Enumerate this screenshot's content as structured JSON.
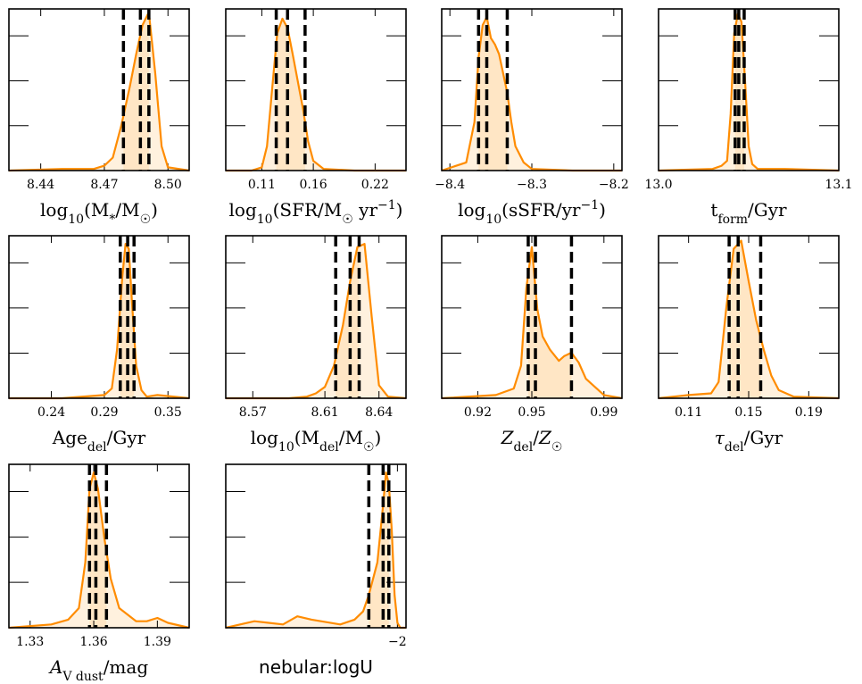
{
  "chart_data": [
    {
      "type": "area",
      "xlabel": "log₁₀(M*/M☉)",
      "xlim": [
        8.425,
        8.51
      ],
      "xticks": [
        8.44,
        8.47,
        8.5
      ],
      "xtick_labels": [
        "8.44",
        "8.47",
        "8.50"
      ],
      "percentiles": [
        8.479,
        8.487,
        8.491
      ],
      "series": [
        {
          "x": [
            8.425,
            8.45,
            8.465,
            8.47,
            8.474,
            8.478,
            8.482,
            8.485,
            8.488,
            8.491,
            8.494,
            8.497,
            8.5,
            8.51
          ],
          "y": [
            0.0,
            0.01,
            0.01,
            0.03,
            0.08,
            0.28,
            0.52,
            0.72,
            0.9,
            0.98,
            0.6,
            0.15,
            0.02,
            0.0
          ]
        }
      ]
    },
    {
      "type": "area",
      "xlabel": "log₁₀(SFR/M☉ yr⁻¹)",
      "xlim": [
        0.075,
        0.25
      ],
      "xticks": [
        0.11,
        0.16,
        0.22
      ],
      "xtick_labels": [
        "0.11",
        "0.16",
        "0.22"
      ],
      "percentiles": [
        0.124,
        0.135,
        0.152
      ],
      "series": [
        {
          "x": [
            0.075,
            0.1,
            0.11,
            0.115,
            0.12,
            0.125,
            0.13,
            0.135,
            0.14,
            0.145,
            0.15,
            0.155,
            0.16,
            0.17,
            0.2,
            0.25
          ],
          "y": [
            0.0,
            0.0,
            0.02,
            0.15,
            0.5,
            0.85,
            0.94,
            0.88,
            0.72,
            0.55,
            0.38,
            0.18,
            0.06,
            0.01,
            0.0,
            0.0
          ]
        }
      ]
    },
    {
      "type": "area",
      "xlabel": "log₁₀(sSFR/yr⁻¹)",
      "xlim": [
        -8.41,
        -8.19
      ],
      "xticks": [
        -8.4,
        -8.3,
        -8.2
      ],
      "xtick_labels": [
        "−8.4",
        "−8.3",
        "−8.2"
      ],
      "percentiles": [
        -8.365,
        -8.355,
        -8.33
      ],
      "series": [
        {
          "x": [
            -8.41,
            -8.38,
            -8.37,
            -8.365,
            -8.36,
            -8.355,
            -8.35,
            -8.345,
            -8.34,
            -8.335,
            -8.33,
            -8.325,
            -8.32,
            -8.31,
            -8.3,
            -8.25,
            -8.19
          ],
          "y": [
            0.0,
            0.05,
            0.3,
            0.7,
            0.9,
            0.95,
            0.82,
            0.78,
            0.72,
            0.6,
            0.48,
            0.3,
            0.15,
            0.05,
            0.01,
            0.0,
            0.0
          ]
        }
      ]
    },
    {
      "type": "area",
      "xlabel": "t_form/Gyr",
      "xlim": [
        13.0,
        13.1
      ],
      "xticks": [
        13.0,
        13.1
      ],
      "xtick_labels": [
        "13.0",
        "13.1"
      ],
      "percentiles": [
        13.0425,
        13.0445,
        13.0475
      ],
      "series": [
        {
          "x": [
            13.0,
            13.03,
            13.035,
            13.038,
            13.04,
            13.042,
            13.044,
            13.046,
            13.048,
            13.05,
            13.052,
            13.055,
            13.07,
            13.1
          ],
          "y": [
            0.0,
            0.01,
            0.03,
            0.06,
            0.35,
            0.85,
            0.97,
            0.92,
            0.55,
            0.15,
            0.04,
            0.01,
            0.01,
            0.0
          ]
        }
      ]
    },
    {
      "type": "area",
      "xlabel": "Age_del/Gyr",
      "xlim": [
        0.2,
        0.37
      ],
      "xticks": [
        0.24,
        0.29,
        0.35
      ],
      "xtick_labels": [
        "0.24",
        "0.29",
        "0.35"
      ],
      "percentiles": [
        0.305,
        0.312,
        0.318
      ],
      "series": [
        {
          "x": [
            0.2,
            0.25,
            0.29,
            0.297,
            0.302,
            0.307,
            0.31,
            0.313,
            0.316,
            0.32,
            0.325,
            0.33,
            0.34,
            0.37
          ],
          "y": [
            0.0,
            0.0,
            0.02,
            0.06,
            0.3,
            0.75,
            0.95,
            0.92,
            0.6,
            0.2,
            0.05,
            0.01,
            0.02,
            0.0
          ]
        }
      ]
    },
    {
      "type": "area",
      "xlabel": "log₁₀(M_del/M☉)",
      "xlim": [
        8.555,
        8.655
      ],
      "xticks": [
        8.57,
        8.61,
        8.64
      ],
      "xtick_labels": [
        "8.57",
        "8.61",
        "8.64"
      ],
      "percentiles": [
        8.616,
        8.624,
        8.629
      ],
      "series": [
        {
          "x": [
            8.555,
            8.59,
            8.6,
            8.605,
            8.61,
            8.615,
            8.62,
            8.624,
            8.628,
            8.632,
            8.636,
            8.64,
            8.645,
            8.655
          ],
          "y": [
            0.0,
            0.0,
            0.01,
            0.03,
            0.07,
            0.2,
            0.45,
            0.72,
            0.93,
            0.95,
            0.5,
            0.08,
            0.01,
            0.0
          ]
        }
      ]
    },
    {
      "type": "area",
      "xlabel": "Z_del/Z☉",
      "xlim": [
        0.9,
        1.0
      ],
      "xticks": [
        0.92,
        0.95,
        0.99
      ],
      "xtick_labels": [
        "0.92",
        "0.95",
        "0.99"
      ],
      "percentiles": [
        0.948,
        0.952,
        0.972
      ],
      "series": [
        {
          "x": [
            0.9,
            0.93,
            0.94,
            0.944,
            0.947,
            0.95,
            0.953,
            0.956,
            0.96,
            0.965,
            0.968,
            0.972,
            0.976,
            0.98,
            0.99,
            1.0
          ],
          "y": [
            0.0,
            0.02,
            0.06,
            0.2,
            0.68,
            0.93,
            0.55,
            0.38,
            0.3,
            0.23,
            0.26,
            0.28,
            0.22,
            0.12,
            0.02,
            0.0
          ]
        }
      ]
    },
    {
      "type": "area",
      "xlabel": "τ_del/Gyr",
      "xlim": [
        0.09,
        0.21
      ],
      "xticks": [
        0.11,
        0.15,
        0.19
      ],
      "xtick_labels": [
        "0.11",
        "0.15",
        "0.19"
      ],
      "percentiles": [
        0.137,
        0.143,
        0.158
      ],
      "series": [
        {
          "x": [
            0.09,
            0.11,
            0.125,
            0.13,
            0.135,
            0.14,
            0.145,
            0.15,
            0.155,
            0.16,
            0.165,
            0.17,
            0.18,
            0.21
          ],
          "y": [
            0.0,
            0.02,
            0.03,
            0.1,
            0.55,
            0.92,
            0.97,
            0.72,
            0.48,
            0.3,
            0.14,
            0.05,
            0.01,
            0.0
          ]
        }
      ]
    },
    {
      "type": "area",
      "xlabel": "A_V dust/mag",
      "xlim": [
        1.32,
        1.405
      ],
      "xticks": [
        1.33,
        1.36,
        1.39
      ],
      "xtick_labels": [
        "1.33",
        "1.36",
        "1.39"
      ],
      "percentiles": [
        1.358,
        1.361,
        1.366
      ],
      "series": [
        {
          "x": [
            1.32,
            1.34,
            1.348,
            1.353,
            1.356,
            1.358,
            1.36,
            1.362,
            1.365,
            1.368,
            1.372,
            1.38,
            1.385,
            1.39,
            1.395,
            1.405
          ],
          "y": [
            0.0,
            0.02,
            0.05,
            0.12,
            0.4,
            0.85,
            0.95,
            0.85,
            0.55,
            0.3,
            0.12,
            0.04,
            0.04,
            0.06,
            0.03,
            0.0
          ]
        }
      ]
    },
    {
      "type": "area",
      "xlabel": "nebular:logU",
      "xlim": [
        -2.6,
        -1.97
      ],
      "xticks": [
        -2.0
      ],
      "xtick_labels": [
        "−2"
      ],
      "percentiles": [
        -2.1,
        -2.05,
        -2.03
      ],
      "series": [
        {
          "x": [
            -2.6,
            -2.5,
            -2.45,
            -2.4,
            -2.35,
            -2.3,
            -2.2,
            -2.15,
            -2.12,
            -2.1,
            -2.07,
            -2.05,
            -2.04,
            -2.03,
            -2.02,
            -2.01,
            -2.0,
            -1.99,
            -1.97
          ],
          "y": [
            0.0,
            0.04,
            0.03,
            0.02,
            0.07,
            0.05,
            0.02,
            0.05,
            0.1,
            0.2,
            0.4,
            0.75,
            0.95,
            0.88,
            0.6,
            0.2,
            0.03,
            0.0,
            0.0
          ]
        }
      ]
    }
  ]
}
